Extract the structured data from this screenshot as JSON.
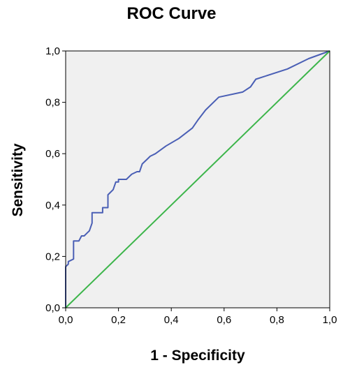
{
  "chart_data": {
    "type": "line",
    "title": "ROC Curve",
    "xlabel": "1 - Specificity",
    "ylabel": "Sensitivity",
    "xlim": [
      0,
      1
    ],
    "ylim": [
      0,
      1
    ],
    "x_ticks": [
      "0,0",
      "0,2",
      "0,4",
      "0,6",
      "0,8",
      "1,0"
    ],
    "y_ticks": [
      "0,0",
      "0,2",
      "0,4",
      "0,6",
      "0,8",
      "1,0"
    ],
    "grid": false,
    "legend": "none",
    "background_color": "#f0f0f0",
    "series": [
      {
        "color": "#4a5fb5",
        "x": [
          0,
          0,
          0.01,
          0.01,
          0.03,
          0.03,
          0.05,
          0.06,
          0.07,
          0.08,
          0.09,
          0.1,
          0.1,
          0.14,
          0.14,
          0.16,
          0.16,
          0.17,
          0.18,
          0.19,
          0.2,
          0.2,
          0.23,
          0.25,
          0.25,
          0.27,
          0.28,
          0.29,
          0.31,
          0.32,
          0.34,
          0.38,
          0.43,
          0.48,
          0.5,
          0.53,
          0.58,
          0.67,
          0.7,
          0.72,
          0.84,
          0.92,
          1.0
        ],
        "y": [
          0,
          0.16,
          0.17,
          0.18,
          0.19,
          0.26,
          0.26,
          0.28,
          0.28,
          0.29,
          0.3,
          0.33,
          0.37,
          0.37,
          0.39,
          0.39,
          0.44,
          0.45,
          0.46,
          0.49,
          0.49,
          0.5,
          0.5,
          0.52,
          0.52,
          0.53,
          0.53,
          0.56,
          0.58,
          0.59,
          0.6,
          0.63,
          0.66,
          0.7,
          0.73,
          0.77,
          0.82,
          0.84,
          0.86,
          0.89,
          0.93,
          0.97,
          1.0
        ]
      },
      {
        "color": "#3cb54a",
        "x": [
          0,
          1
        ],
        "y": [
          0,
          1
        ]
      }
    ]
  }
}
